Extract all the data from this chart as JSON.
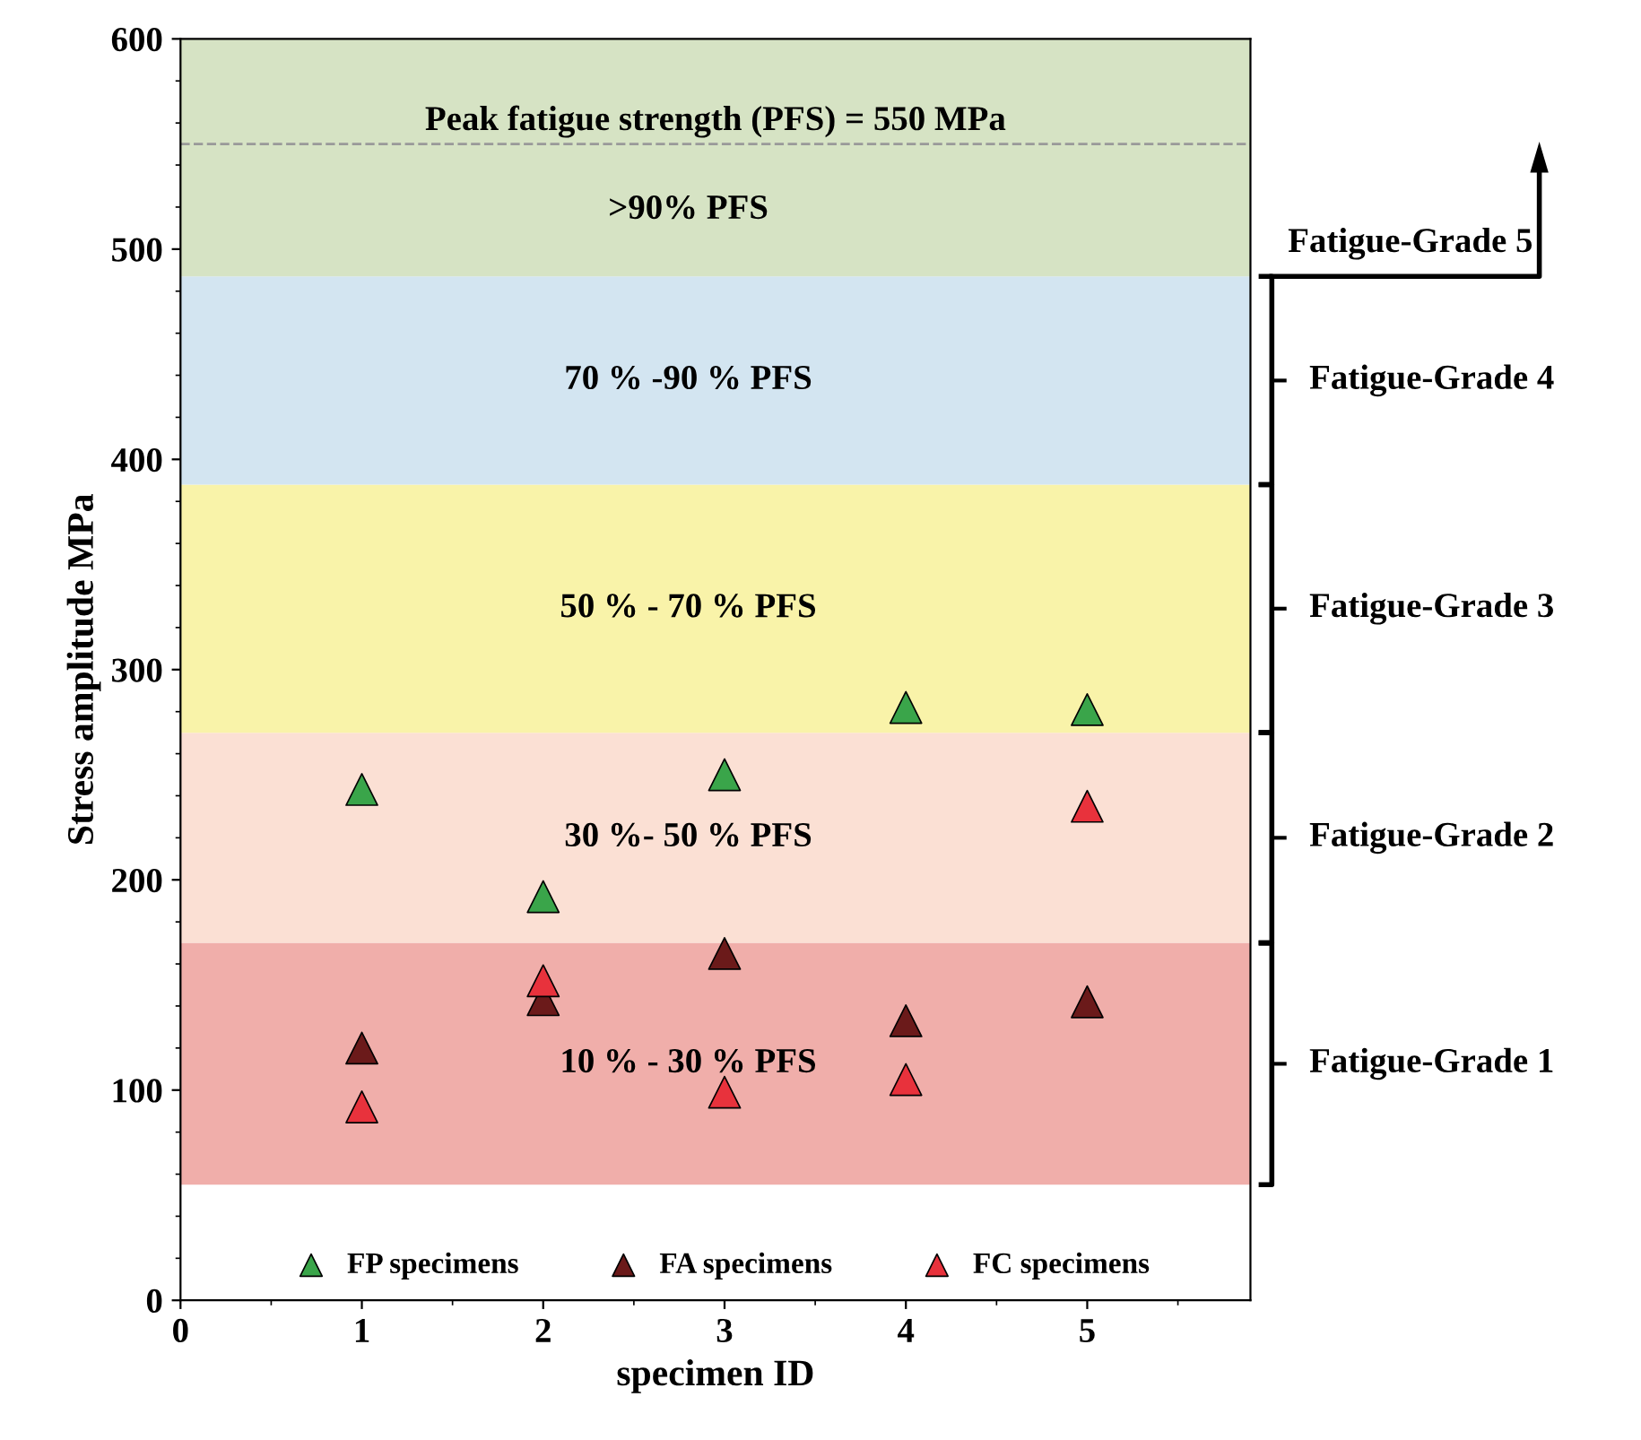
{
  "chart_data": {
    "type": "scatter",
    "xlabel": "specimen ID",
    "ylabel": "Stress amplitude MPa",
    "xlim": [
      0,
      5.9
    ],
    "xticks": [
      0,
      1,
      2,
      3,
      4,
      5
    ],
    "ylim": [
      0,
      600
    ],
    "yticks": [
      0,
      100,
      200,
      300,
      400,
      500,
      600
    ],
    "marker": "triangle",
    "grid": false,
    "legend": "bottom",
    "series": [
      {
        "name": "FP specimens",
        "color": "#3aa54a",
        "x": [
          1,
          2,
          3,
          4,
          5
        ],
        "values": [
          243,
          192,
          250,
          282,
          281
        ]
      },
      {
        "name": "FA specimens",
        "color": "#6b1a1a",
        "x": [
          1,
          2,
          3,
          4,
          5
        ],
        "values": [
          120,
          143,
          165,
          133,
          142
        ]
      },
      {
        "name": "FC specimens",
        "color": "#e8323c",
        "x": [
          1,
          2,
          3,
          4,
          5
        ],
        "values": [
          92,
          152,
          99,
          105,
          235
        ]
      }
    ],
    "bands": [
      {
        "axis": "y",
        "from": 55,
        "to": 170,
        "label": "10 % - 30 % PFS",
        "color": "#f0aeaa"
      },
      {
        "axis": "y",
        "from": 170,
        "to": 270,
        "label": "30 %- 50 % PFS",
        "color": "#fbe0d4"
      },
      {
        "axis": "y",
        "from": 270,
        "to": 388,
        "label": "50 % - 70 % PFS",
        "color": "#f9f3a9"
      },
      {
        "axis": "y",
        "from": 388,
        "to": 487,
        "label": "70 % -90 % PFS",
        "color": "#d3e5f1"
      },
      {
        "axis": "y",
        "from": 487,
        "to": 600,
        "label": ">90% PFS",
        "color": "#d6e3c4"
      }
    ],
    "ref_lines": [
      {
        "axis": "y",
        "value": 550,
        "label": "Peak fatigue strength (PFS) = 550 MPa",
        "color": "#999999",
        "line_style": "dashed"
      }
    ],
    "annotations": [
      "Fatigue-Grade 1",
      "Fatigue-Grade 2",
      "Fatigue-Grade 3",
      "Fatigue-Grade 4",
      "Fatigue-Grade 5"
    ]
  }
}
